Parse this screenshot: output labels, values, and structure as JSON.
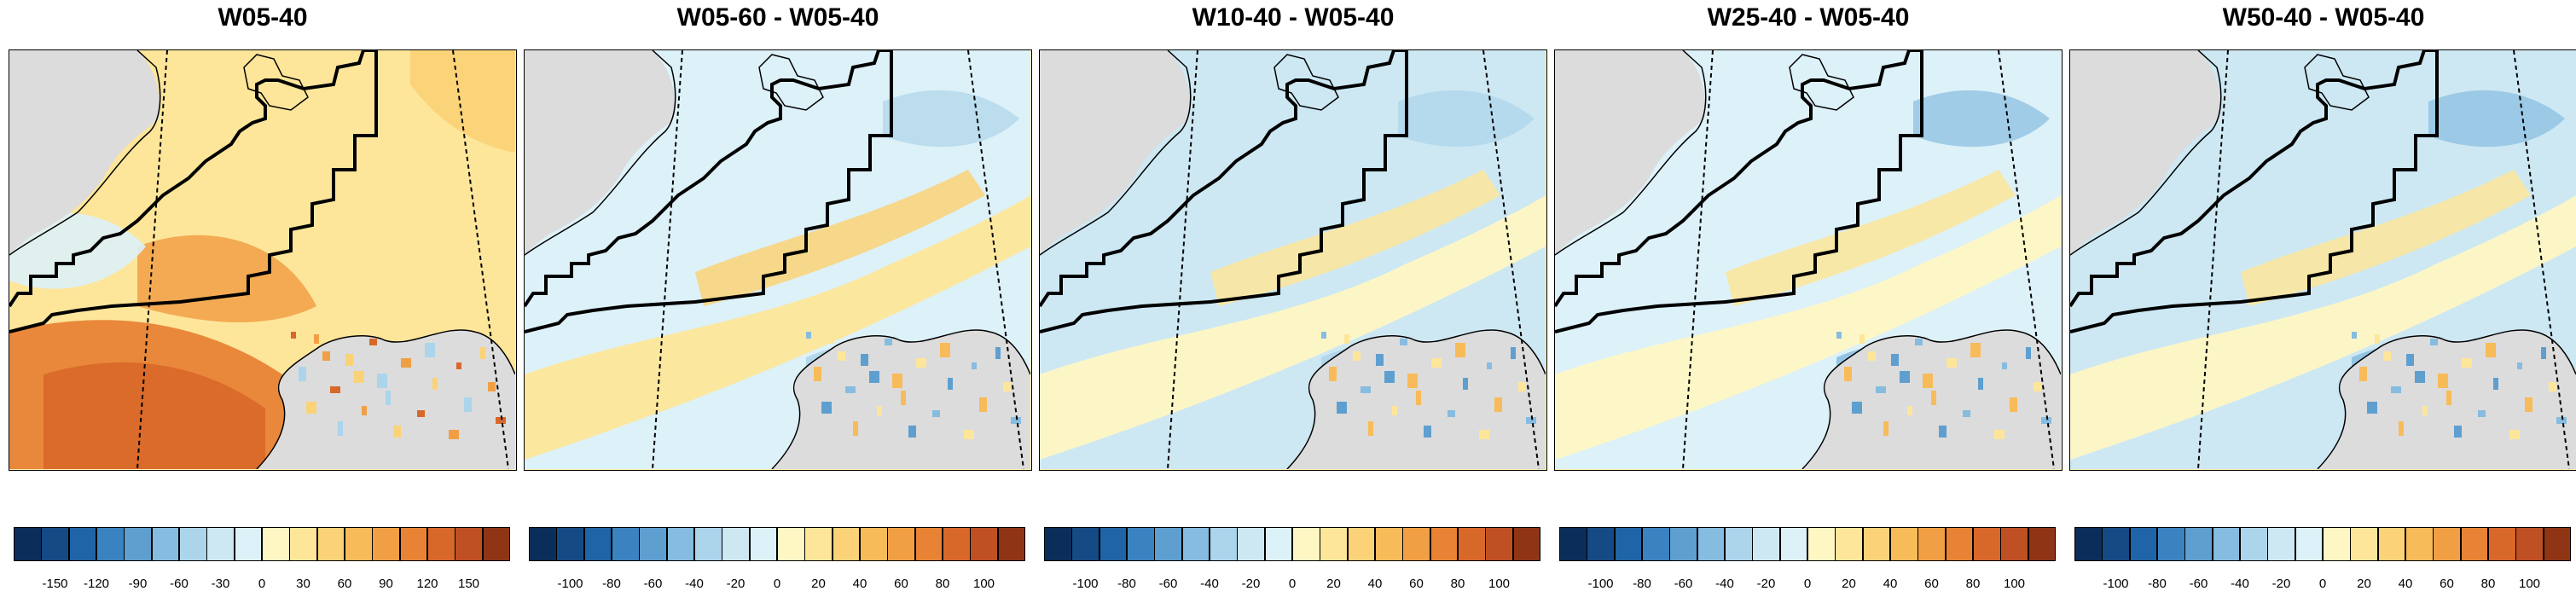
{
  "panels": [
    {
      "title": "W05-40",
      "scale": "absolute",
      "colorbar_ticks": [
        "-150",
        "-120",
        "-90",
        "-60",
        "-30",
        "0",
        "30",
        "60",
        "90",
        "120",
        "150"
      ]
    },
    {
      "title": "W05-60 - W05-40",
      "scale": "difference",
      "colorbar_ticks": [
        "-100",
        "-80",
        "-60",
        "-40",
        "-20",
        "0",
        "20",
        "40",
        "60",
        "80",
        "100"
      ]
    },
    {
      "title": "W10-40 - W05-40",
      "scale": "difference",
      "colorbar_ticks": [
        "-100",
        "-80",
        "-60",
        "-40",
        "-20",
        "0",
        "20",
        "40",
        "60",
        "80",
        "100"
      ]
    },
    {
      "title": "W25-40 - W05-40",
      "scale": "difference",
      "colorbar_ticks": [
        "-100",
        "-80",
        "-60",
        "-40",
        "-20",
        "0",
        "20",
        "40",
        "60",
        "80",
        "100"
      ]
    },
    {
      "title": "W50-40 - W05-40",
      "scale": "difference",
      "colorbar_ticks": [
        "-100",
        "-80",
        "-60",
        "-40",
        "-20",
        "0",
        "20",
        "40",
        "60",
        "80",
        "100"
      ]
    }
  ],
  "colorbar_colors": [
    "#0b2d5a",
    "#154a84",
    "#1f64a6",
    "#3a83c0",
    "#5e9fd0",
    "#86bcdf",
    "#acd4ea",
    "#cde8f3",
    "#ddf1f8",
    "#fef7c4",
    "#fde69a",
    "#fbd277",
    "#f7bb5a",
    "#f19f45",
    "#e88335",
    "#d8682a",
    "#be5023",
    "#8f3516"
  ],
  "colors": {
    "land_gray": "#dcdcdc",
    "neutral_yellow": "#fcf1b3",
    "neutral_blue": "#cde8f3"
  }
}
